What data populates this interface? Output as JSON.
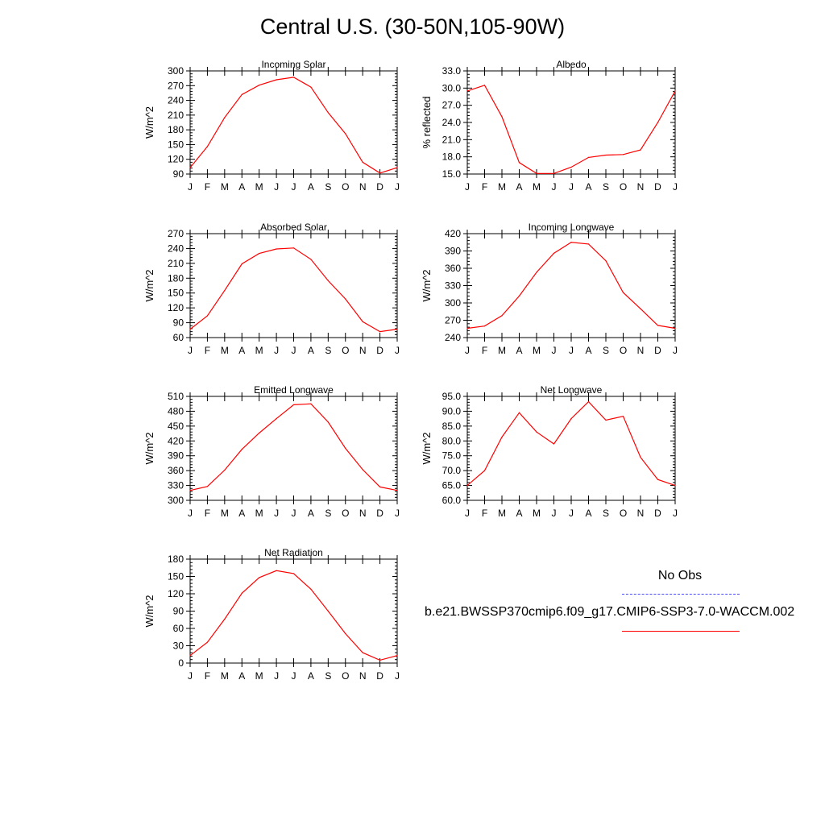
{
  "title": "Central U.S. (30-50N,105-90W)",
  "legend": {
    "obs_label": "No Obs",
    "obs_color": "#4a4aff",
    "model_label": "b.e21.BWSSP370cmip6.f09_g17.CMIP6-SSP3-7.0-WACCM.002",
    "model_color": "#ff0000"
  },
  "chart_data": [
    {
      "type": "line",
      "title": "Incoming Solar",
      "ylabel": "W/m^2",
      "categories": [
        "J",
        "F",
        "M",
        "A",
        "M",
        "J",
        "J",
        "A",
        "S",
        "O",
        "N",
        "D",
        "J"
      ],
      "ylim": [
        90,
        300
      ],
      "yticks": [
        "300",
        "270",
        "240",
        "210",
        "180",
        "150",
        "120",
        "90"
      ],
      "grid": false,
      "series": [
        {
          "values": [
            103,
            146,
            205,
            252,
            271,
            282,
            287,
            267,
            215,
            172,
            114,
            92,
            103
          ]
        }
      ]
    },
    {
      "type": "line",
      "title": "Albedo",
      "ylabel": "% reflected",
      "categories": [
        "J",
        "F",
        "M",
        "A",
        "M",
        "J",
        "J",
        "A",
        "S",
        "O",
        "N",
        "D",
        "J"
      ],
      "ylim": [
        15.0,
        33.0
      ],
      "yticks": [
        "33.0",
        "30.0",
        "27.0",
        "24.0",
        "21.0",
        "18.0",
        "15.0"
      ],
      "grid": false,
      "series": [
        {
          "values": [
            29.5,
            30.5,
            25.0,
            17.0,
            15.1,
            15.1,
            16.2,
            17.9,
            18.3,
            18.4,
            19.2,
            24.0,
            29.5
          ]
        }
      ]
    },
    {
      "type": "line",
      "title": "Absorbed Solar",
      "ylabel": "W/m^2",
      "categories": [
        "J",
        "F",
        "M",
        "A",
        "M",
        "J",
        "J",
        "A",
        "S",
        "O",
        "N",
        "D",
        "J"
      ],
      "ylim": [
        60,
        270
      ],
      "yticks": [
        "270",
        "240",
        "210",
        "180",
        "150",
        "120",
        "90",
        "60"
      ],
      "grid": false,
      "series": [
        {
          "values": [
            77,
            104,
            155,
            209,
            230,
            239,
            241,
            218,
            175,
            138,
            92,
            72,
            77
          ]
        }
      ]
    },
    {
      "type": "line",
      "title": "Incoming Longwave",
      "ylabel": "W/m^2",
      "categories": [
        "J",
        "F",
        "M",
        "A",
        "M",
        "J",
        "J",
        "A",
        "S",
        "O",
        "N",
        "D",
        "J"
      ],
      "ylim": [
        240,
        420
      ],
      "yticks": [
        "420",
        "390",
        "360",
        "330",
        "300",
        "270",
        "240"
      ],
      "grid": false,
      "series": [
        {
          "values": [
            256,
            260,
            278,
            312,
            353,
            386,
            405,
            402,
            373,
            318,
            290,
            261,
            256
          ]
        }
      ]
    },
    {
      "type": "line",
      "title": "Emitted Longwave",
      "ylabel": "W/m^2",
      "categories": [
        "J",
        "F",
        "M",
        "A",
        "M",
        "J",
        "J",
        "A",
        "S",
        "O",
        "N",
        "D",
        "J"
      ],
      "ylim": [
        300,
        510
      ],
      "yticks": [
        "510",
        "480",
        "450",
        "420",
        "390",
        "360",
        "330",
        "300"
      ],
      "grid": false,
      "series": [
        {
          "values": [
            320,
            328,
            361,
            403,
            436,
            465,
            493,
            495,
            458,
            405,
            362,
            327,
            320
          ]
        }
      ]
    },
    {
      "type": "line",
      "title": "Net Longwave",
      "ylabel": "W/m^2",
      "categories": [
        "J",
        "F",
        "M",
        "A",
        "M",
        "J",
        "J",
        "A",
        "S",
        "O",
        "N",
        "D",
        "J"
      ],
      "ylim": [
        60.0,
        95.0
      ],
      "yticks": [
        "95.0",
        "90.0",
        "85.0",
        "80.0",
        "75.0",
        "70.0",
        "65.0",
        "60.0"
      ],
      "grid": false,
      "series": [
        {
          "values": [
            65.0,
            70.0,
            81.3,
            89.5,
            83.0,
            79.0,
            87.5,
            93.2,
            87.0,
            88.3,
            74.5,
            67.0,
            65.0
          ]
        }
      ]
    },
    {
      "type": "line",
      "title": "Net Radiation",
      "ylabel": "W/m^2",
      "categories": [
        "J",
        "F",
        "M",
        "A",
        "M",
        "J",
        "J",
        "A",
        "S",
        "O",
        "N",
        "D",
        "J"
      ],
      "ylim": [
        0,
        180
      ],
      "yticks": [
        "180",
        "150",
        "120",
        "90",
        "60",
        "30",
        "0"
      ],
      "grid": false,
      "series": [
        {
          "values": [
            13,
            36,
            76,
            121,
            148,
            160,
            155,
            128,
            90,
            51,
            18,
            5,
            13
          ]
        }
      ]
    }
  ]
}
